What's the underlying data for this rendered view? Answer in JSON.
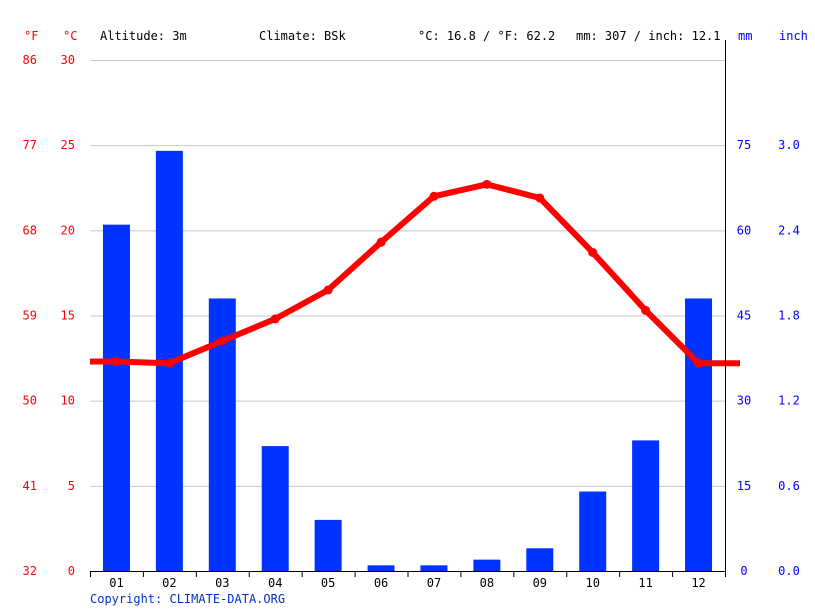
{
  "header": {
    "f_unit": "°F",
    "c_unit": "°C",
    "altitude": "Altitude: 3m",
    "climate": "Climate: BSk",
    "avg_temp": "°C: 16.8 / °F: 62.2",
    "avg_precip": "mm: 307 / inch: 12.1",
    "mm_unit": "mm",
    "inch_unit": "inch"
  },
  "footer": {
    "copyright": "Copyright: CLIMATE-DATA.ORG"
  },
  "colors": {
    "temperature": "#ff0000",
    "precipitation": "#0033ff",
    "grid": "#c8c8c8"
  },
  "chart_data": {
    "type": "bar",
    "categories": [
      "01",
      "02",
      "03",
      "04",
      "05",
      "06",
      "07",
      "08",
      "09",
      "10",
      "11",
      "12"
    ],
    "series": [
      {
        "name": "",
        "type": "bar",
        "axis": "right",
        "unit": "mm",
        "values": [
          61,
          74,
          48,
          22,
          9,
          1,
          1,
          2,
          4,
          14,
          23,
          48
        ]
      },
      {
        "name": "",
        "type": "line",
        "axis": "left",
        "unit": "°C",
        "values": [
          12.3,
          12.2,
          13.5,
          14.8,
          16.5,
          19.3,
          22.0,
          22.7,
          21.9,
          18.7,
          15.3,
          12.2
        ]
      }
    ],
    "y_left_celsius": {
      "range": [
        0,
        30
      ],
      "ticks": [
        "0",
        "5",
        "10",
        "15",
        "20",
        "25",
        "30"
      ]
    },
    "y_left_fahrenheit": {
      "ticks": [
        "32",
        "41",
        "50",
        "59",
        "68",
        "77",
        "86"
      ]
    },
    "y_right_mm": {
      "range": [
        0,
        90
      ],
      "ticks": [
        "0",
        "15",
        "30",
        "45",
        "60",
        "75"
      ]
    },
    "y_right_inch": {
      "ticks": [
        "0.0",
        "0.6",
        "1.2",
        "1.8",
        "2.4",
        "3.0"
      ]
    },
    "grid": true
  }
}
